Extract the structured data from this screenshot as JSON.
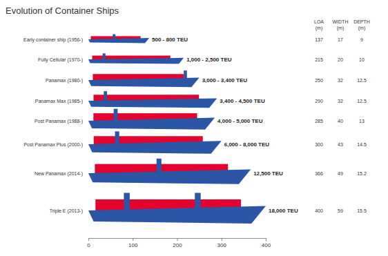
{
  "chart_data": {
    "type": "bar",
    "orientation": "horizontal",
    "title": "Evolution of Container Ships",
    "categories": [
      "Early container ship (1956-)",
      "Fully Cellular (1970-)",
      "Panamax (1980-)",
      "Panamax Max (1985-)",
      "Post Panamax (1988-)",
      "Post Panamax Plus (2000-)",
      "New Panamax (2014-)",
      "Triple E (2013-)"
    ],
    "values": [
      137,
      215,
      250,
      290,
      285,
      300,
      366,
      400
    ],
    "capacities": [
      "500 - 800 TEU",
      "1,000 - 2,500 TEU",
      "3,000 - 3,400 TEU",
      "3,400 - 4,500 TEU",
      "4,000 - 5,000 TEU",
      "6,000 - 8,000 TEU",
      "12,500 TEU",
      "18,000 TEU"
    ],
    "widths": [
      17,
      20,
      32,
      32,
      40,
      43,
      49,
      59
    ],
    "depths": [
      9,
      10,
      12.5,
      12.5,
      13,
      14.5,
      15.2,
      15.5
    ],
    "columns": [
      {
        "name": "LOA",
        "unit": "(m)"
      },
      {
        "name": "WIDTH",
        "unit": "(m)"
      },
      {
        "name": "DEPTH",
        "unit": "(m)"
      }
    ],
    "xlim": [
      0,
      400
    ],
    "xticks": [
      0,
      100,
      200,
      300,
      400
    ],
    "color": "#2a56a5"
  }
}
